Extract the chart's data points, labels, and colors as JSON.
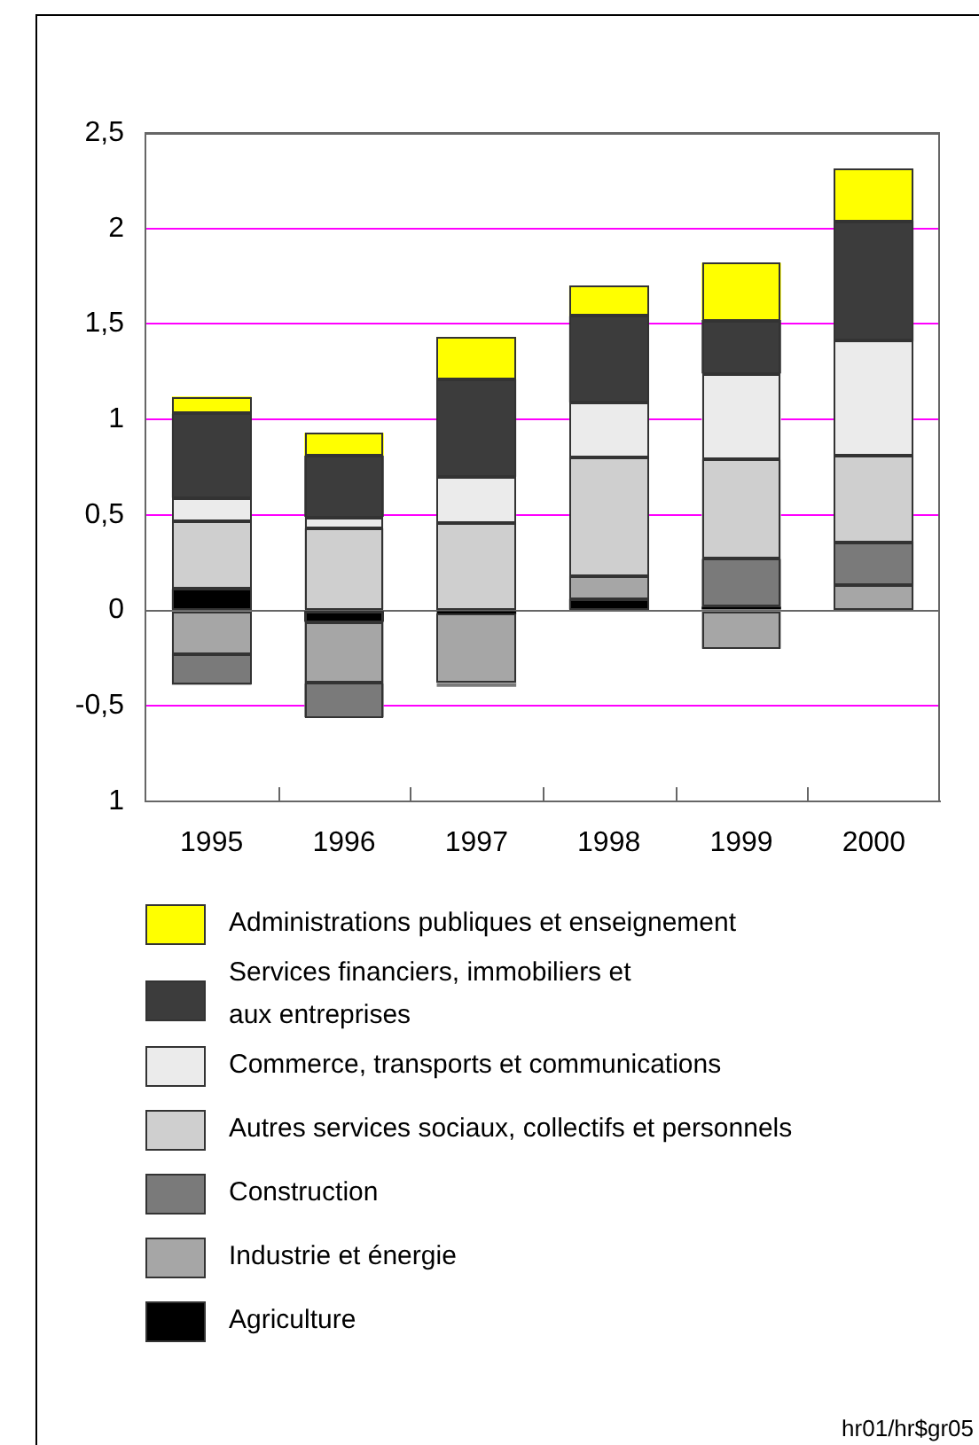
{
  "chart_data": {
    "type": "bar",
    "stacked": true,
    "categories": [
      "1995",
      "1996",
      "1997",
      "1998",
      "1999",
      "2000"
    ],
    "series": [
      {
        "name": "Agriculture",
        "color": "#000000",
        "values": [
          0.11,
          -0.06,
          -0.02,
          0.06,
          0.02,
          null
        ]
      },
      {
        "name": "Industrie et énergie",
        "color": "#a6a6a6",
        "values": [
          -0.23,
          -0.32,
          -0.36,
          0.12,
          -0.2,
          0.13
        ]
      },
      {
        "name": "Construction",
        "color": "#7a7a7a",
        "values": [
          -0.16,
          -0.18,
          -0.02,
          null,
          0.25,
          0.23
        ]
      },
      {
        "name": "Autres services sociaux, collectifs et personnels",
        "color": "#cfcfcf",
        "values": [
          0.36,
          0.43,
          0.46,
          0.62,
          0.52,
          0.45
        ]
      },
      {
        "name": "Commerce, transports et communications",
        "color": "#ebebeb",
        "values": [
          0.12,
          0.06,
          0.24,
          0.29,
          0.45,
          0.6
        ]
      },
      {
        "name": "Services financiers, immobiliers et\naux entreprises",
        "color": "#3c3c3c",
        "values": [
          0.44,
          0.32,
          0.51,
          0.45,
          0.28,
          0.63
        ]
      },
      {
        "name": "Administrations publiques et enseignement",
        "color": "#ffff00",
        "values": [
          0.09,
          0.12,
          0.22,
          0.16,
          0.3,
          0.27
        ]
      }
    ],
    "ylim": [
      -1,
      2.5
    ],
    "yticks": [
      {
        "value": 2.5,
        "label": "2,5"
      },
      2,
      {
        "value": 1.5,
        "label": "1,5"
      },
      1,
      {
        "value": 0.5,
        "label": "0,5"
      },
      0,
      {
        "value": -0.5,
        "label": "-0,5"
      },
      {
        "value": -1,
        "label": "1"
      }
    ],
    "grid": "y",
    "legend": "bottom",
    "annotations": [
      "hr01/hr$gr05"
    ]
  }
}
